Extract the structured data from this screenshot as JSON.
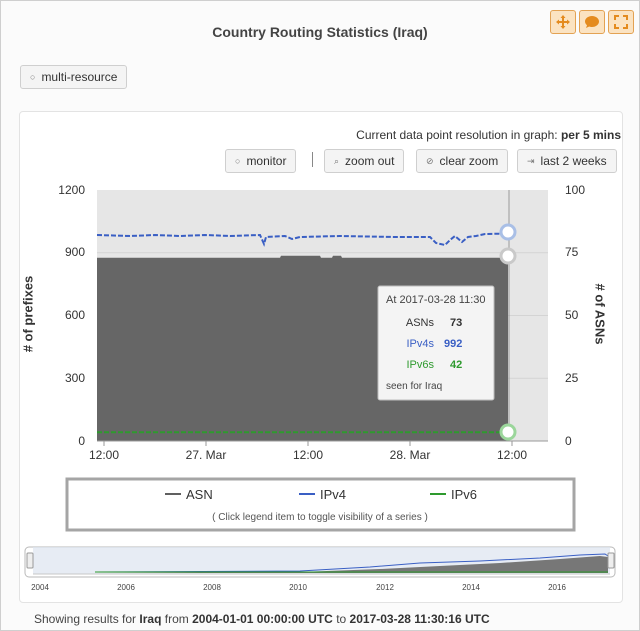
{
  "header": {
    "title": "Country Routing Statistics (Iraq)"
  },
  "top_icons": [
    "move-icon",
    "comment-icon",
    "fullscreen-icon"
  ],
  "multi_resource": {
    "label": "multi-resource"
  },
  "resolution": {
    "prefix": "Current data point resolution in graph:",
    "value": "per 5 mins"
  },
  "toolbar": {
    "monitor": "monitor",
    "zoom_out": "zoom out",
    "clear_zoom": "clear zoom",
    "last_2_weeks": "last 2 weeks"
  },
  "axes": {
    "left_label": "# of prefixes",
    "right_label": "# of ASNs",
    "left_ticks": [
      "1200",
      "900",
      "600",
      "300",
      "0"
    ],
    "right_ticks": [
      "100",
      "75",
      "50",
      "25",
      "0"
    ],
    "x_ticks": [
      "12:00",
      "27. Mar",
      "12:00",
      "28. Mar",
      "12:00"
    ]
  },
  "tooltip": {
    "title": "At 2017-03-28 11:30",
    "rows": [
      {
        "label": "ASNs",
        "value": "73",
        "color": "#333333"
      },
      {
        "label": "IPv4s",
        "value": "992",
        "color": "#3a5fc4"
      },
      {
        "label": "IPv6s",
        "value": "42",
        "color": "#2e9a2e"
      }
    ],
    "footer": "seen for Iraq"
  },
  "legend": {
    "items": [
      {
        "label": "ASN",
        "color": "#606060"
      },
      {
        "label": "IPv4",
        "color": "#3a5fc4"
      },
      {
        "label": "IPv6",
        "color": "#2e9a2e"
      }
    ],
    "hint": "( Click legend item to toggle visibility of a series )"
  },
  "navigator": {
    "years": [
      "2004",
      "2006",
      "2008",
      "2010",
      "2012",
      "2014",
      "2016"
    ]
  },
  "footer": {
    "prefix": "Showing results for",
    "country": "Iraq",
    "from_word": "from",
    "start": "2004-01-01 00:00:00 UTC",
    "to_word": "to",
    "end": "2017-03-28 11:30:16 UTC"
  },
  "chart_data": {
    "type": "area",
    "x": [
      "12:00",
      "27. Mar",
      "12:00",
      "28. Mar",
      "12:00"
    ],
    "series": [
      {
        "name": "ASN",
        "axis": "right",
        "type": "area",
        "color": "#606060",
        "values": [
          73,
          73,
          73,
          73,
          73
        ]
      },
      {
        "name": "IPv4",
        "axis": "left",
        "type": "line",
        "dashed": true,
        "color": "#3a5fc4",
        "values": [
          985,
          988,
          985,
          990,
          992
        ]
      },
      {
        "name": "IPv6",
        "axis": "left",
        "type": "line",
        "dashed": true,
        "color": "#2e9a2e",
        "values": [
          42,
          42,
          42,
          42,
          42
        ]
      }
    ],
    "ylabel": "# of prefixes",
    "ylim": [
      0,
      1200
    ],
    "y2label": "# of ASNs",
    "y2lim": [
      0,
      100
    ],
    "grid": true,
    "legend": "bottom"
  }
}
